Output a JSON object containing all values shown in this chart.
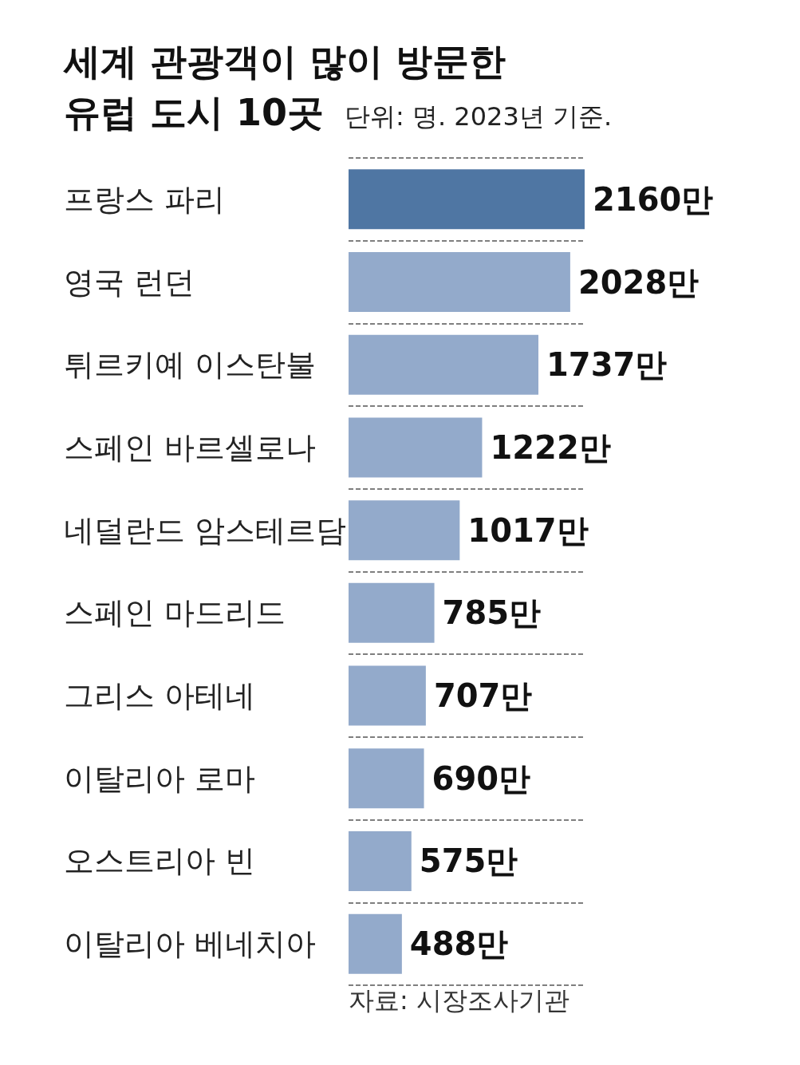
{
  "chart_data": {
    "type": "bar",
    "orientation": "horizontal",
    "title": "세계 관광객이 많이 방문한\n유럽 도시 10곳",
    "subtitle": "단위: 명. 2023년 기준.",
    "categories": [
      "프랑스 파리",
      "영국 런던",
      "튀르키예 이스탄불",
      "스페인 바르셀로나",
      "네덜란드 암스테르담",
      "스페인 마드리드",
      "그리스 아테네",
      "이탈리아 로마",
      "오스트리아 빈",
      "이탈리아 베네치아"
    ],
    "values": [
      2160,
      2028,
      1737,
      1222,
      1017,
      785,
      707,
      690,
      575,
      488
    ],
    "value_labels": [
      "2160만",
      "2028만",
      "1737만",
      "1222만",
      "1017만",
      "785만",
      "707만",
      "690만",
      "575만",
      "488만"
    ],
    "colors": [
      "#4f76a3",
      "#93aacb",
      "#93aacb",
      "#93aacb",
      "#93aacb",
      "#93aacb",
      "#93aacb",
      "#93aacb",
      "#93aacb",
      "#93aacb"
    ],
    "grid": "y",
    "annotations": [
      "자료: 시장조사기관"
    ]
  }
}
